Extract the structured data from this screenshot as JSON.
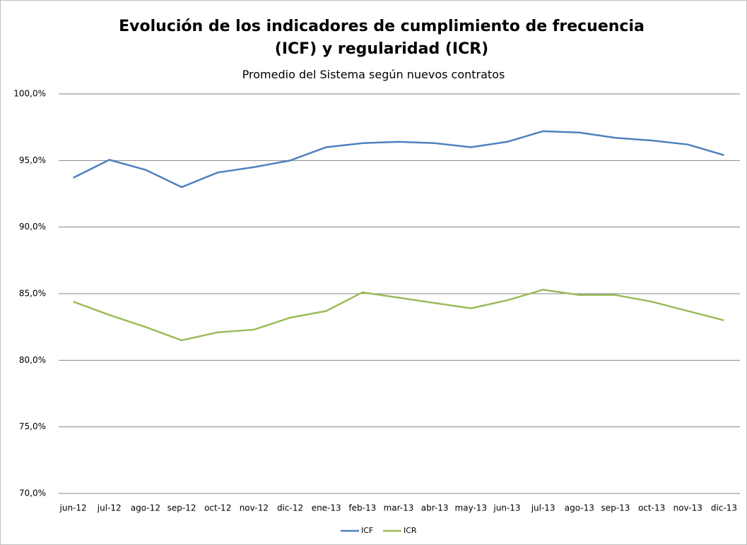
{
  "chart_data": {
    "type": "line",
    "title": "Evolución de los indicadores de cumplimiento de frecuencia (ICF) y regularidad (ICR)",
    "subtitle": "Promedio del Sistema según nuevos contratos",
    "categories": [
      "jun-12",
      "jul-12",
      "ago-12",
      "sep-12",
      "oct-12",
      "nov-12",
      "dic-12",
      "ene-13",
      "feb-13",
      "mar-13",
      "abr-13",
      "may-13",
      "jun-13",
      "jul-13",
      "ago-13",
      "sep-13",
      "oct-13",
      "nov-13",
      "dic-13"
    ],
    "series": [
      {
        "name": "ICF",
        "color": "#4f81bd",
        "values": [
          93.7,
          95.05,
          94.3,
          93.0,
          94.1,
          94.5,
          95.0,
          96.0,
          96.3,
          96.4,
          96.3,
          96.0,
          96.4,
          97.2,
          97.1,
          96.7,
          96.5,
          96.2,
          95.4
        ]
      },
      {
        "name": "ICR",
        "color": "#9bbb59",
        "values": [
          84.4,
          83.4,
          82.5,
          81.5,
          82.1,
          82.3,
          83.2,
          83.7,
          85.1,
          84.7,
          84.3,
          83.9,
          84.5,
          85.3,
          84.9,
          84.9,
          84.4,
          83.7,
          83.0
        ]
      }
    ],
    "ylim": [
      70,
      100
    ],
    "yticks": [
      {
        "value": 70,
        "label": "70,0%"
      },
      {
        "value": 75,
        "label": "75,0%"
      },
      {
        "value": 80,
        "label": "80,0%"
      },
      {
        "value": 85,
        "label": "85,0%"
      },
      {
        "value": 90,
        "label": "90,0%"
      },
      {
        "value": 95,
        "label": "95,0%"
      },
      {
        "value": 100,
        "label": "100,0%"
      }
    ],
    "grid": true,
    "legend": "bottom"
  }
}
